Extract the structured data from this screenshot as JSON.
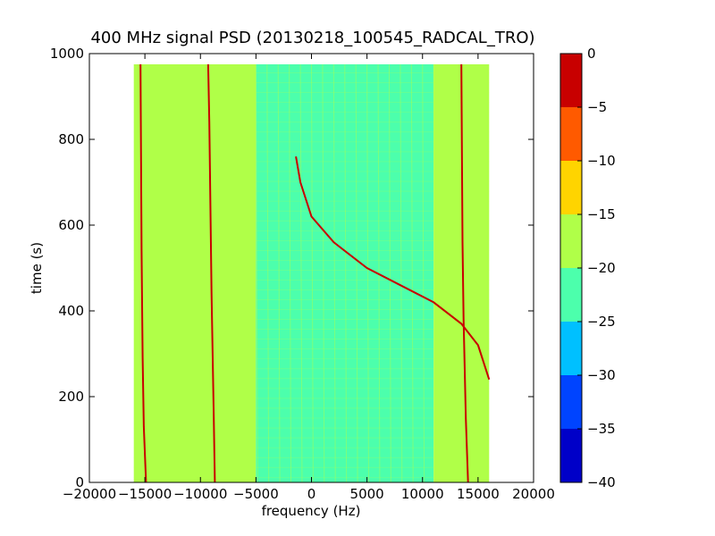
{
  "chart_data": {
    "type": "heatmap",
    "title": "400 MHz signal PSD (20130218_100545_RADCAL_TRO)",
    "xlabel": "frequency (Hz)",
    "ylabel": "time (s)",
    "xlim": [
      -20000,
      20000
    ],
    "ylim": [
      0,
      1000
    ],
    "xticks": [
      -20000,
      -15000,
      -10000,
      -5000,
      0,
      5000,
      10000,
      15000,
      20000
    ],
    "xtick_labels": [
      "−20000",
      "−15000",
      "−10000",
      "−5000",
      "0",
      "5000",
      "10000",
      "15000",
      "20000"
    ],
    "yticks": [
      0,
      200,
      400,
      600,
      800,
      1000
    ],
    "ytick_labels": [
      "0",
      "200",
      "400",
      "600",
      "800",
      "1000"
    ],
    "data_extent": {
      "freq_range_hz": [
        -16000,
        16000
      ],
      "time_range_s": [
        0,
        975
      ]
    },
    "background_levels": [
      {
        "freq_range_hz": [
          -16000,
          -5000
        ],
        "level_db": -17.5
      },
      {
        "freq_range_hz": [
          -5000,
          11000
        ],
        "level_db": -22.5
      },
      {
        "freq_range_hz": [
          11000,
          16000
        ],
        "level_db": -17.5
      }
    ],
    "signal_traces": [
      {
        "level_db": -2.5,
        "points": [
          [
            -15400,
            975
          ],
          [
            -15300,
            540
          ],
          [
            -15200,
            290
          ],
          [
            -15100,
            130
          ],
          [
            -14900,
            0
          ]
        ]
      },
      {
        "level_db": -2.5,
        "points": [
          [
            -9300,
            975
          ],
          [
            -9200,
            840
          ],
          [
            -9000,
            440
          ],
          [
            -8800,
            150
          ],
          [
            -8700,
            0
          ]
        ]
      },
      {
        "level_db": -2.5,
        "points": [
          [
            13500,
            975
          ],
          [
            13600,
            560
          ],
          [
            13700,
            380
          ],
          [
            13900,
            150
          ],
          [
            14100,
            0
          ]
        ]
      },
      {
        "level_db": -5,
        "points": [
          [
            -1400,
            760
          ],
          [
            -1000,
            700
          ],
          [
            0,
            620
          ],
          [
            2000,
            560
          ],
          [
            5000,
            500
          ],
          [
            8000,
            460
          ],
          [
            11000,
            420
          ],
          [
            13500,
            370
          ],
          [
            15000,
            320
          ],
          [
            16000,
            240
          ]
        ]
      }
    ],
    "colorbar": {
      "colormap": "jet",
      "range": [
        -40,
        0
      ],
      "bands": [
        {
          "from": -40,
          "to": -35,
          "color": "#0000c8"
        },
        {
          "from": -35,
          "to": -30,
          "color": "#0044ff"
        },
        {
          "from": -30,
          "to": -25,
          "color": "#00c0ff"
        },
        {
          "from": -25,
          "to": -20,
          "color": "#4cffac"
        },
        {
          "from": -20,
          "to": -15,
          "color": "#b0ff48"
        },
        {
          "from": -15,
          "to": -10,
          "color": "#ffd400"
        },
        {
          "from": -10,
          "to": -5,
          "color": "#ff5a00"
        },
        {
          "from": -5,
          "to": 0,
          "color": "#c80000"
        }
      ],
      "ticks": [
        0,
        -5,
        -10,
        -15,
        -20,
        -25,
        -30,
        -35,
        -40
      ],
      "tick_labels": [
        "0",
        "−5",
        "−10",
        "−15",
        "−20",
        "−25",
        "−30",
        "−35",
        "−40"
      ]
    }
  }
}
